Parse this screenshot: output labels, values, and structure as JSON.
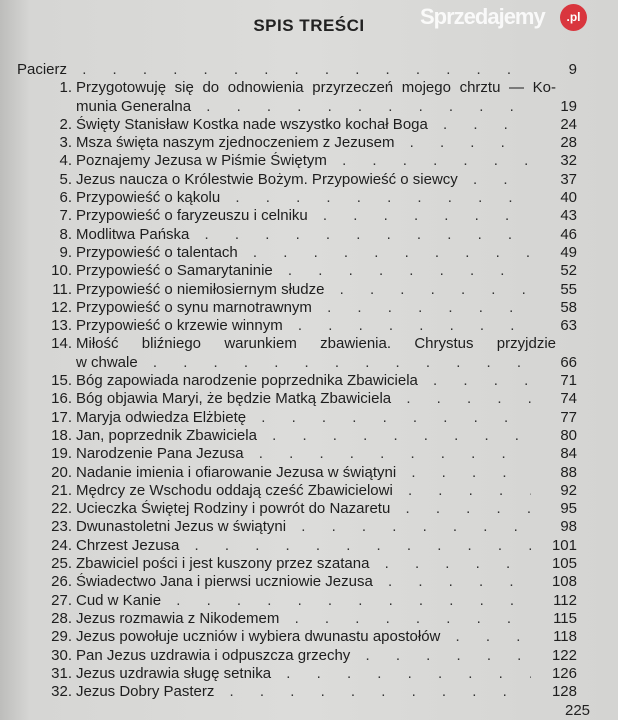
{
  "title": "SPIS TREŚCI",
  "entries": [
    {
      "num": "",
      "lines": [
        "Pacierz"
      ],
      "page": "9"
    },
    {
      "num": "1.",
      "lines": [
        "Przygotowuję się do odnowienia przyrzeczeń mojego chrztu — Ko-",
        "munia Generalna"
      ],
      "page": "19"
    },
    {
      "num": "2.",
      "lines": [
        "Święty Stanisław Kostka nade wszystko kochał Boga"
      ],
      "page": "24"
    },
    {
      "num": "3.",
      "lines": [
        "Msza święta naszym zjednoczeniem z Jezusem"
      ],
      "page": "28"
    },
    {
      "num": "4.",
      "lines": [
        "Poznajemy Jezusa w Piśmie Świętym"
      ],
      "page": "32"
    },
    {
      "num": "5.",
      "lines": [
        "Jezus naucza o Królestwie Bożym. Przypowieść o siewcy"
      ],
      "page": "37"
    },
    {
      "num": "6.",
      "lines": [
        "Przypowieść o kąkolu"
      ],
      "page": "40"
    },
    {
      "num": "7.",
      "lines": [
        "Przypowieść o faryzeuszu i celniku"
      ],
      "page": "43"
    },
    {
      "num": "8.",
      "lines": [
        "Modlitwa Pańska"
      ],
      "page": "46"
    },
    {
      "num": "9.",
      "lines": [
        "Przypowieść o talentach"
      ],
      "page": "49"
    },
    {
      "num": "10.",
      "lines": [
        "Przypowieść o Samarytaninie"
      ],
      "page": "52"
    },
    {
      "num": "11.",
      "lines": [
        "Przypowieść o niemiłosiernym słudze"
      ],
      "page": "55"
    },
    {
      "num": "12.",
      "lines": [
        "Przypowieść o synu marnotrawnym"
      ],
      "page": "58"
    },
    {
      "num": "13.",
      "lines": [
        "Przypowieść o krzewie winnym"
      ],
      "page": "63"
    },
    {
      "num": "14.",
      "lines": [
        "Miłość bliźniego warunkiem zbawienia. Chrystus przyjdzie",
        "w chwale"
      ],
      "page": "66"
    },
    {
      "num": "15.",
      "lines": [
        "Bóg zapowiada narodzenie poprzednika Zbawiciela"
      ],
      "page": "71"
    },
    {
      "num": "16.",
      "lines": [
        "Bóg objawia Maryi, że będzie Matką Zbawiciela"
      ],
      "page": "74"
    },
    {
      "num": "17.",
      "lines": [
        "Maryja odwiedza Elżbietę"
      ],
      "page": "77"
    },
    {
      "num": "18.",
      "lines": [
        "Jan, poprzednik Zbawiciela"
      ],
      "page": "80"
    },
    {
      "num": "19.",
      "lines": [
        "Narodzenie Pana Jezusa"
      ],
      "page": "84"
    },
    {
      "num": "20.",
      "lines": [
        "Nadanie imienia i ofiarowanie Jezusa w świątyni"
      ],
      "page": "88"
    },
    {
      "num": "21.",
      "lines": [
        "Mędrcy ze Wschodu oddają cześć Zbawicielowi"
      ],
      "page": "92"
    },
    {
      "num": "22.",
      "lines": [
        "Ucieczka Świętej Rodziny i powrót do Nazaretu"
      ],
      "page": "95"
    },
    {
      "num": "23.",
      "lines": [
        "Dwunastoletni Jezus w świątyni"
      ],
      "page": "98"
    },
    {
      "num": "24.",
      "lines": [
        "Chrzest Jezusa"
      ],
      "page": "101"
    },
    {
      "num": "25.",
      "lines": [
        "Zbawiciel pości i jest kuszony przez szatana"
      ],
      "page": "105"
    },
    {
      "num": "26.",
      "lines": [
        "Świadectwo Jana i pierwsi uczniowie Jezusa"
      ],
      "page": "108"
    },
    {
      "num": "27.",
      "lines": [
        "Cud w Kanie"
      ],
      "page": "112"
    },
    {
      "num": "28.",
      "lines": [
        "Jezus rozmawia z Nikodemem"
      ],
      "page": "115"
    },
    {
      "num": "29.",
      "lines": [
        "Jezus powołuje uczniów i wybiera dwunastu apostołów"
      ],
      "page": "118"
    },
    {
      "num": "30.",
      "lines": [
        "Pan Jezus uzdrawia i odpuszcza grzechy"
      ],
      "page": "122"
    },
    {
      "num": "31.",
      "lines": [
        "Jezus uzdrawia sługę setnika"
      ],
      "page": "126"
    },
    {
      "num": "32.",
      "lines": [
        "Jezus Dobry Pasterz"
      ],
      "page": "128"
    }
  ],
  "page_number": "225",
  "watermark": {
    "text": "Sprzedajemy",
    "badge": ".pl",
    "badge_color": "#d9363e"
  }
}
